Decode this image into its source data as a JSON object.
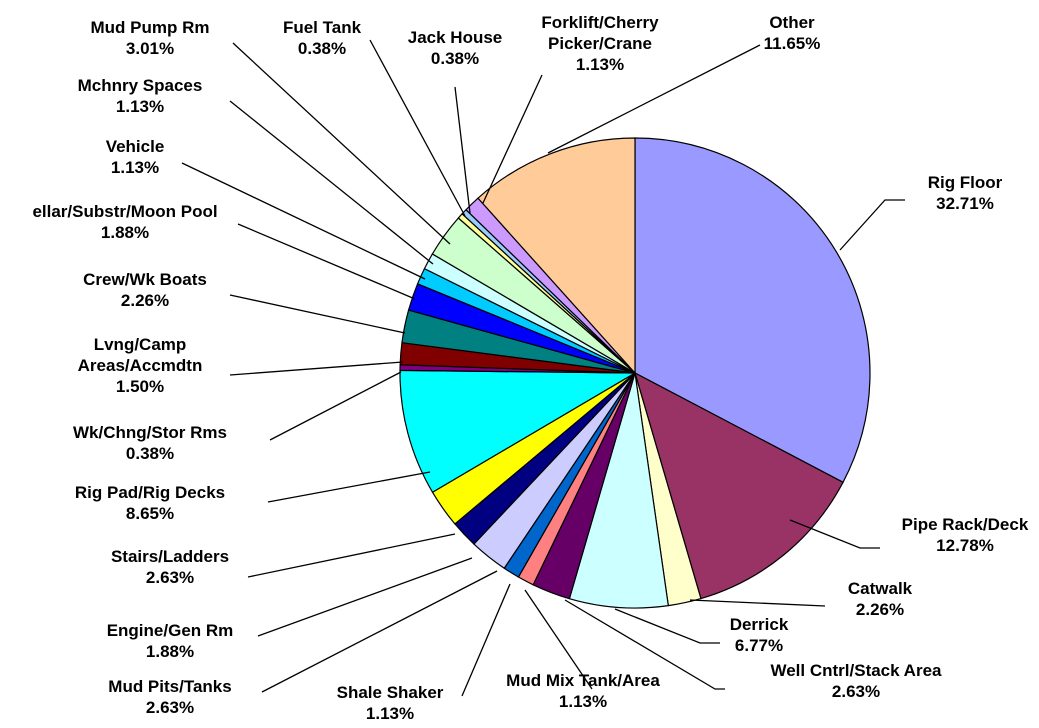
{
  "chart_data": {
    "type": "pie",
    "title": "",
    "start_angle_deg": 0,
    "direction": "clockwise",
    "slices": [
      {
        "label": "Rig Floor",
        "value": 32.71,
        "display": "32.71%",
        "color": "#9999FF"
      },
      {
        "label": "Pipe Rack/Deck",
        "value": 12.78,
        "display": "12.78%",
        "color": "#993366"
      },
      {
        "label": "Catwalk",
        "value": 2.26,
        "display": "2.26%",
        "color": "#FFFFCC"
      },
      {
        "label": "Derrick",
        "value": 6.77,
        "display": "6.77%",
        "color": "#CCFFFF"
      },
      {
        "label": "Well Cntrl/Stack Area",
        "value": 2.63,
        "display": "2.63%",
        "color": "#660066"
      },
      {
        "label": "Mud Mix Tank/Area",
        "value": 1.13,
        "display": "1.13%",
        "color": "#FF8080"
      },
      {
        "label": "Shale Shaker",
        "value": 1.13,
        "display": "1.13%",
        "color": "#0066CC"
      },
      {
        "label": "Mud Pits/Tanks",
        "value": 2.63,
        "display": "2.63%",
        "color": "#CCCCFF"
      },
      {
        "label": "Engine/Gen Rm",
        "value": 1.88,
        "display": "1.88%",
        "color": "#000080"
      },
      {
        "label": "Stairs/Ladders",
        "value": 2.63,
        "display": "2.63%",
        "color": "#FFFF00"
      },
      {
        "label": "Rig Pad/Rig Decks",
        "value": 8.65,
        "display": "8.65%",
        "color": "#00FFFF"
      },
      {
        "label": "Wk/Chng/Stor Rms",
        "value": 0.38,
        "display": "0.38%",
        "color": "#800080"
      },
      {
        "label": "Lvng/Camp Areas/Accmdtn",
        "value": 1.5,
        "display": "1.50%",
        "color": "#800000"
      },
      {
        "label": "Crew/Wk Boats",
        "value": 2.26,
        "display": "2.26%",
        "color": "#008080"
      },
      {
        "label": "ellar/Substr/Moon Pool",
        "value": 1.88,
        "display": "1.88%",
        "color": "#0000FF"
      },
      {
        "label": "Vehicle",
        "value": 1.13,
        "display": "1.13%",
        "color": "#00CCFF"
      },
      {
        "label": "Mchnry Spaces",
        "value": 1.13,
        "display": "1.13%",
        "color": "#CCFFFF"
      },
      {
        "label": "Mud Pump Rm",
        "value": 3.01,
        "display": "3.01%",
        "color": "#CCFFCC"
      },
      {
        "label": "Fuel Tank",
        "value": 0.38,
        "display": "0.38%",
        "color": "#FFFF99"
      },
      {
        "label": "Jack House",
        "value": 0.38,
        "display": "0.38%",
        "color": "#99CCFF"
      },
      {
        "label": "Forklift/Cherry Picker/Crane",
        "value": 1.13,
        "display": "1.13%",
        "color": "#CC99FF"
      },
      {
        "label": "Other",
        "value": 11.65,
        "display": "11.65%",
        "color": "#FFCC99"
      }
    ]
  }
}
